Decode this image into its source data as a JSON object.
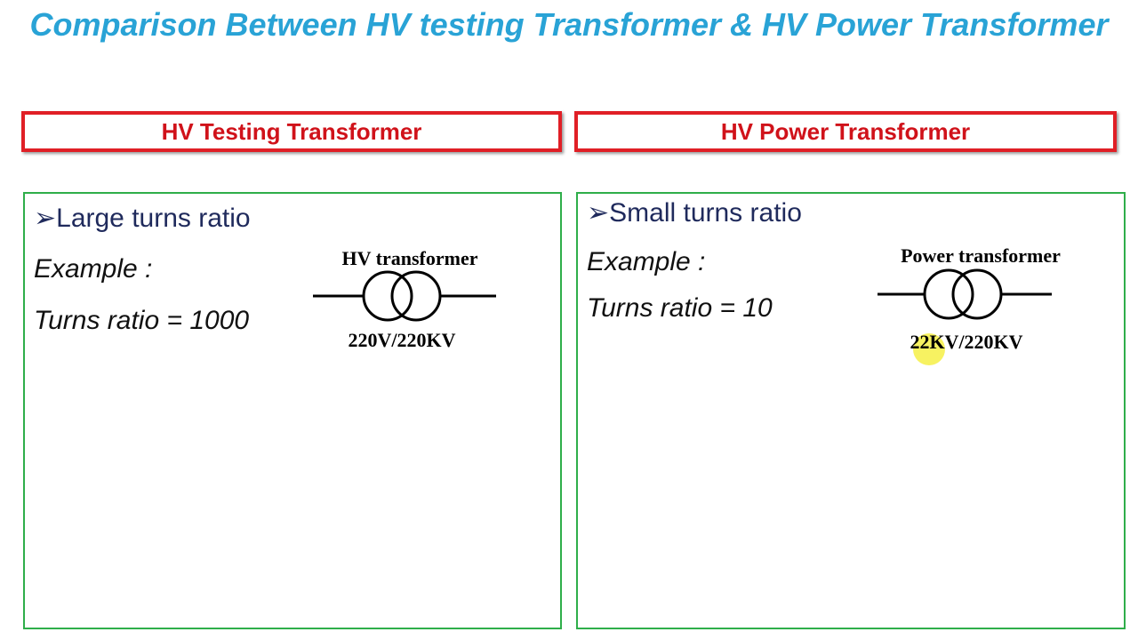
{
  "title": "Comparison Between HV testing Transformer & HV Power Transformer",
  "columns": [
    {
      "heading": "HV Testing Transformer",
      "point": "Large turns ratio",
      "example": "Example :",
      "ratio_label": "Turns ratio = ",
      "ratio_value": "1000",
      "diagram_title": "HV transformer",
      "diagram_rating": "220V/220KV"
    },
    {
      "heading": "HV Power Transformer",
      "point": "Small turns ratio",
      "example": "Example :",
      "ratio_label": "Turns ratio = ",
      "ratio_value": "10",
      "diagram_title": "Power transformer",
      "diagram_rating": "22KV/220KV"
    }
  ]
}
